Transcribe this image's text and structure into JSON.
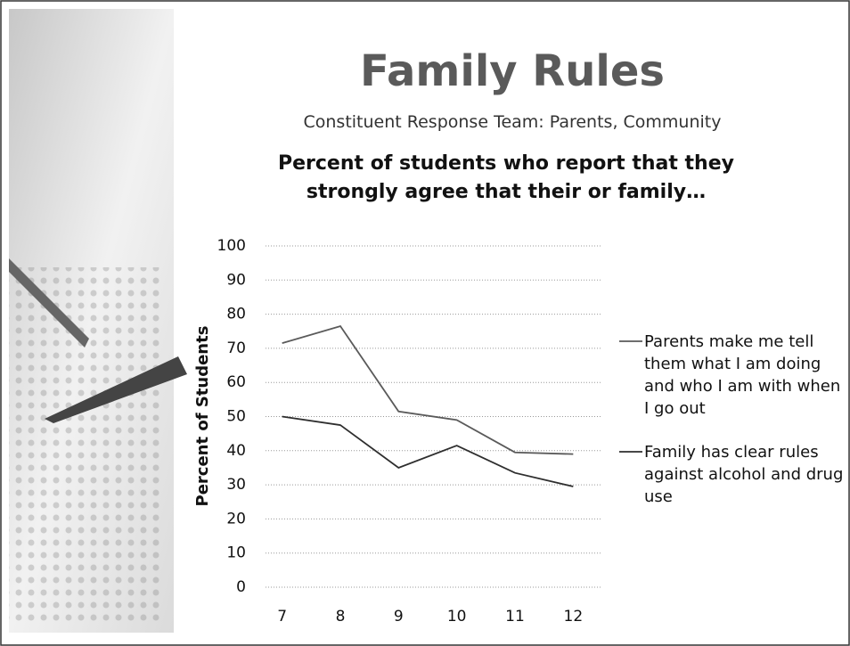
{
  "title": "Family Rules",
  "subtitle": "Constituent Response Team: Parents, Community",
  "chart_data": {
    "type": "line",
    "title": "Percent of students who report that they strongly agree that their or family…",
    "y_label": "Percent of Students",
    "categories": [
      "7",
      "8",
      "9",
      "10",
      "11",
      "12"
    ],
    "series": [
      {
        "name": "Parents make me tell them what I am doing and who I am with when I go out",
        "color": "#5a5a5a",
        "values": [
          71.5,
          76.5,
          51.5,
          49,
          39.5,
          39
        ]
      },
      {
        "name": "Family has clear rules against alcohol and drug use",
        "color": "#2e2e2e",
        "values": [
          50,
          47.5,
          35,
          41.5,
          33.5,
          29.5
        ]
      }
    ],
    "ylim": [
      0,
      100
    ],
    "yticks": [
      0,
      10,
      20,
      30,
      40,
      50,
      60,
      70,
      80,
      90,
      100
    ],
    "grid": true,
    "legend": "right"
  }
}
